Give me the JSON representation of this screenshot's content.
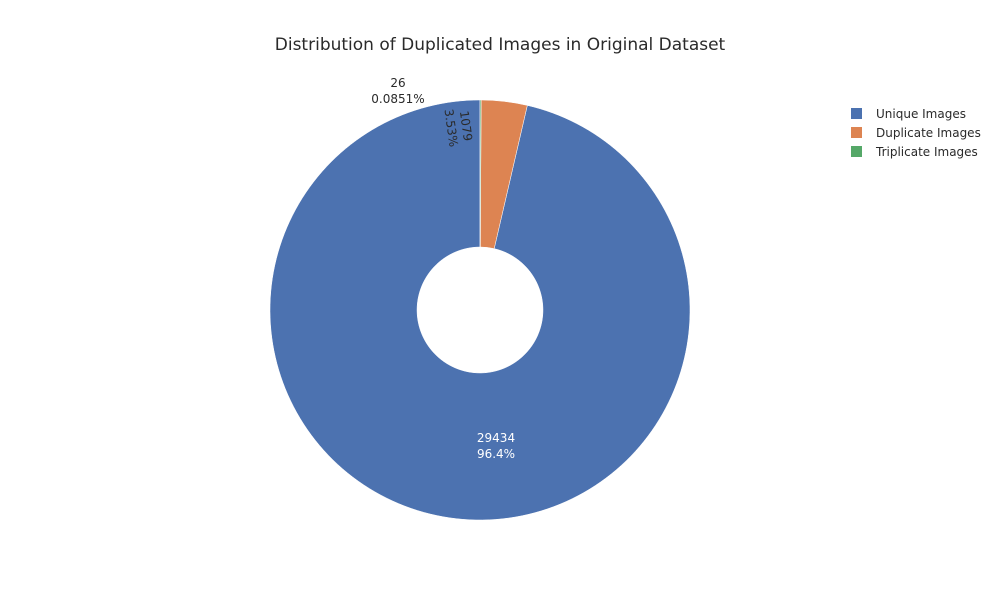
{
  "chart_data": {
    "type": "pie",
    "hole": true,
    "title": "Distribution of Duplicated Images in Original Dataset",
    "legend_position": "top-right",
    "slices": [
      {
        "label": "Unique Images",
        "value": 29434,
        "percent_text": "96.4%",
        "value_text": "29434",
        "color": "#4C72B0"
      },
      {
        "label": "Duplicate Images",
        "value": 1079,
        "percent_text": "3.53%",
        "value_text": "1079",
        "color": "#DD8452"
      },
      {
        "label": "Triplicate Images",
        "value": 26,
        "percent_text": "0.0851%",
        "value_text": "26",
        "color": "#55A868"
      }
    ]
  }
}
